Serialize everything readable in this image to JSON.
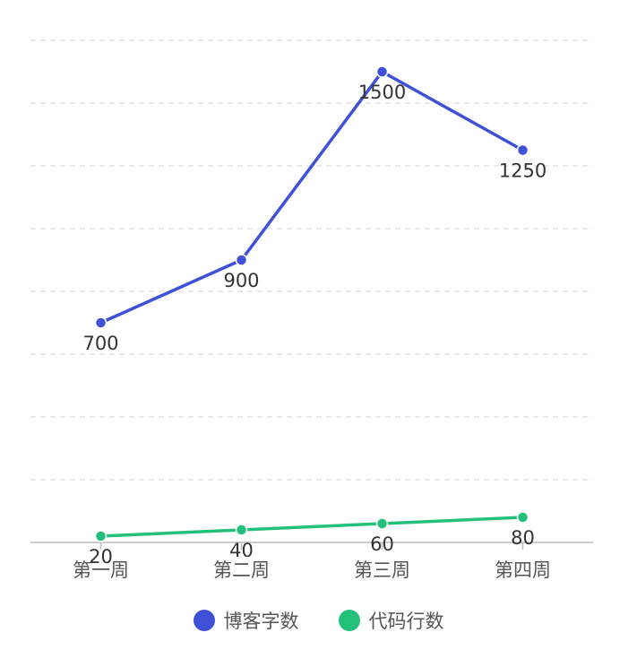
{
  "chart_data": {
    "type": "line",
    "categories": [
      "第一周",
      "第二周",
      "第三周",
      "第四周"
    ],
    "series": [
      {
        "name": "博客字数",
        "values": [
          700,
          900,
          1500,
          1250
        ],
        "color": "#3f51d6",
        "labels": [
          "700",
          "900",
          "1500",
          "1250"
        ]
      },
      {
        "name": "代码行数",
        "values": [
          20,
          40,
          60,
          80
        ],
        "color": "#22c07a",
        "labels": [
          "20",
          "40",
          "60",
          "80"
        ]
      }
    ],
    "ylim": [
      0,
      1600
    ],
    "grid": true,
    "legend": "bottom"
  }
}
